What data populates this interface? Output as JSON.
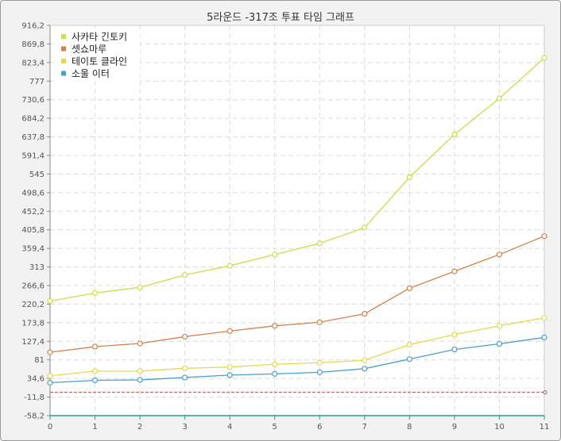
{
  "chart_data": {
    "type": "line",
    "title": "5라운드 -317조 투표 타임 그래프",
    "x": [
      0,
      1,
      2,
      3,
      4,
      5,
      6,
      7,
      8,
      9,
      10,
      11
    ],
    "x_tick_labels": [
      "0",
      "1",
      "2",
      "3",
      "4",
      "5",
      "6",
      "7",
      "8",
      "9",
      "10",
      "11"
    ],
    "y_tick_labels": [
      "916,2",
      "869,8",
      "823,4",
      "777",
      "730,6",
      "684,2",
      "637,8",
      "591,4",
      "545",
      "498,6",
      "452,2",
      "405,8",
      "359,4",
      "313",
      "266,6",
      "220,2",
      "173,8",
      "127,4",
      "81",
      "34,6",
      "-11,8",
      "-58,2"
    ],
    "ylim": [
      -58.2,
      916.2
    ],
    "grid": true,
    "legend_position": "top-left",
    "series": [
      {
        "name": "사카타 긴토키",
        "color": "#c8e04a",
        "values": [
          228,
          248,
          262,
          293,
          316,
          344,
          372,
          411,
          537,
          644,
          734,
          835
        ]
      },
      {
        "name": "셋쇼마루",
        "color": "#d9804a",
        "values": [
          100,
          114,
          122,
          139,
          153,
          166,
          175,
          196,
          260,
          302,
          344,
          390
        ]
      },
      {
        "name": "테이토 클라인",
        "color": "#e6d94c",
        "values": [
          41,
          53,
          53,
          60,
          63,
          70,
          74,
          80,
          119,
          144,
          166,
          186
        ]
      },
      {
        "name": "소울 이터",
        "color": "#4a9fd1",
        "values": [
          24,
          30,
          31,
          37,
          43,
          46,
          50,
          59,
          83,
          107,
          121,
          137
        ]
      }
    ],
    "reference_line": {
      "value": 0,
      "color": "#b05050"
    }
  }
}
